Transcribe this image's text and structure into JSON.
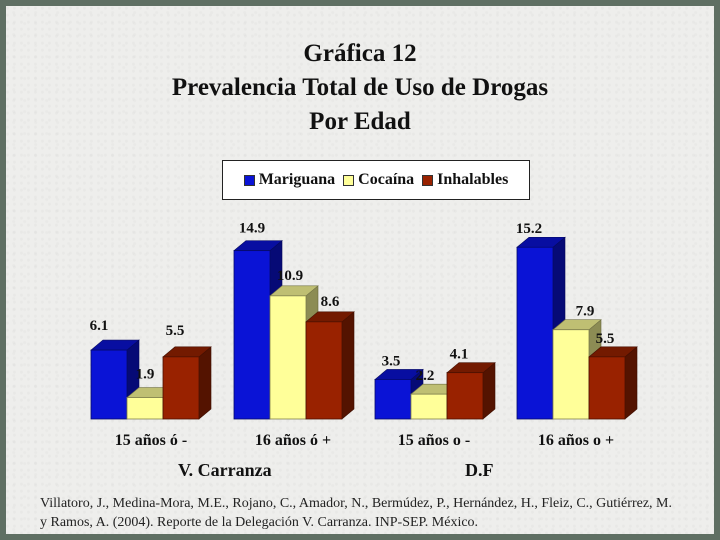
{
  "title_lines": [
    "Gráfica 12",
    "Prevalencia Total de Uso de Drogas",
    "Por Edad"
  ],
  "legend": [
    {
      "label": "Mariguana",
      "color": "#0a13d6"
    },
    {
      "label": "Cocaína",
      "color": "#ffff99"
    },
    {
      "label": "Inhalables",
      "color": "#992200"
    }
  ],
  "chart_data": {
    "type": "bar",
    "title": "Gráfica 12 Prevalencia Total de Uso de Drogas Por Edad",
    "categories": [
      "15 años ó -",
      "16 años ó +",
      "15 años o -",
      "16 años o +"
    ],
    "groups": [
      "V. Carranza",
      "D.F"
    ],
    "series": [
      {
        "name": "Mariguana",
        "values": [
          6.1,
          14.9,
          3.5,
          15.2
        ],
        "color": "#0a13d6"
      },
      {
        "name": "Cocaína",
        "values": [
          1.9,
          10.9,
          2.2,
          7.9
        ],
        "color": "#ffff99"
      },
      {
        "name": "Inhalables",
        "values": [
          5.5,
          8.6,
          4.1,
          5.5
        ],
        "color": "#992200"
      }
    ],
    "data_labels": [
      [
        "6.1",
        "14.9",
        "3.5",
        "15.2"
      ],
      [
        "1.9",
        "10.9",
        "2.2",
        "7.9"
      ],
      [
        "5.5",
        "8.6",
        "4.1",
        "5.5"
      ]
    ],
    "ylim": [
      0,
      16
    ],
    "style": "3d-clustered-bar",
    "grid": false,
    "legend_position": "top"
  },
  "citation": "Villatoro, J., Medina-Mora, M.E., Rojano, C., Amador, N., Bermúdez, P., Hernández, H., Fleiz, C., Gutiérrez, M. y Ramos, A. (2004). Reporte de la Delegación V. Carranza. INP-SEP. México."
}
